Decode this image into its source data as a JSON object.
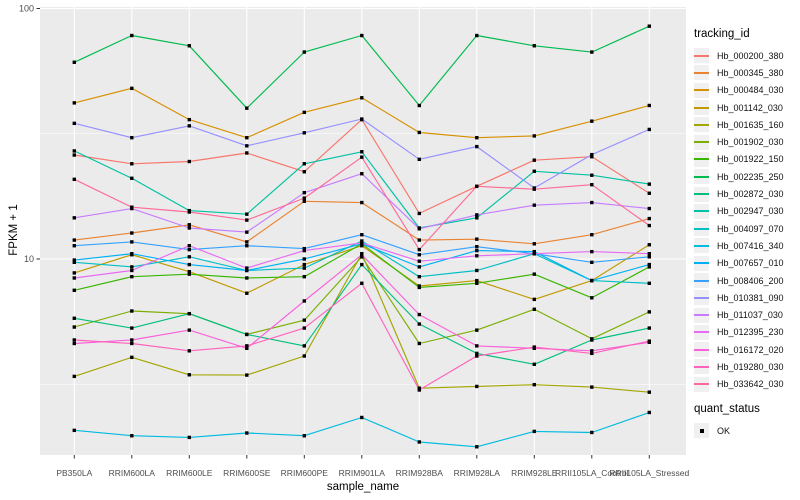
{
  "chart_data": {
    "type": "line",
    "xlabel": "sample_name",
    "ylabel": "FPKM + 1",
    "y_scale": "log10",
    "y_ticks": [
      100,
      10
    ],
    "y_minor_ticks": [
      31.623,
      3.162
    ],
    "y_domain": [
      1.6,
      104
    ],
    "panel_bg": "#EBEBEB",
    "grid_color": "#FFFFFF",
    "point_color": "#000000",
    "legend": {
      "title": "tracking_id",
      "position": "right"
    },
    "quant_status_legend": {
      "title": "quant_status",
      "items": [
        {
          "label": "OK",
          "marker": "black-square"
        }
      ]
    },
    "x_categories": [
      "PB350LA",
      "RRIM600LA",
      "RRIM600LE",
      "RRIM600SE",
      "RRIM600PE",
      "RRIM901LA",
      "RRIM928BA",
      "RRIM928LA",
      "RRIM928LE",
      "RRII105LA_Control",
      "RRII105LA_Stressed"
    ],
    "series": [
      {
        "name": "Hb_000200_380",
        "color": "#F8766D",
        "values": [
          26,
          24,
          24.5,
          26.5,
          22.3,
          36,
          15.2,
          19.5,
          24.8,
          25.6,
          18.3
        ]
      },
      {
        "name": "Hb_000345_380",
        "color": "#EA8331",
        "values": [
          11.9,
          12.7,
          13.7,
          11.7,
          17,
          16.8,
          11.9,
          12,
          11.5,
          12.5,
          14.5
        ]
      },
      {
        "name": "Hb_000484_030",
        "color": "#D89000",
        "values": [
          42,
          48,
          36,
          30.5,
          38.5,
          44,
          32,
          30.5,
          31,
          35.5,
          41
        ]
      },
      {
        "name": "Hb_001142_030",
        "color": "#C09B00",
        "values": [
          8.8,
          10.4,
          8.9,
          7.3,
          9.5,
          11.3,
          7.8,
          8.2,
          6.9,
          8.2,
          11.4
        ]
      },
      {
        "name": "Hb_001635_160",
        "color": "#A3A500",
        "values": [
          3.4,
          4.05,
          3.45,
          3.44,
          4.1,
          10.5,
          3.05,
          3.1,
          3.15,
          3.08,
          2.94
        ]
      },
      {
        "name": "Hb_001902_030",
        "color": "#7CAE00",
        "values": [
          5.35,
          6.2,
          6.05,
          5.0,
          5.7,
          10.2,
          4.6,
          5.2,
          6.3,
          4.8,
          6.15
        ]
      },
      {
        "name": "Hb_001922_150",
        "color": "#39B600",
        "values": [
          7.5,
          8.5,
          8.7,
          8.4,
          8.5,
          11.5,
          7.7,
          8.0,
          8.7,
          7.0,
          9.3
        ]
      },
      {
        "name": "Hb_002235_250",
        "color": "#00BB4E",
        "values": [
          61,
          78,
          71,
          40,
          67,
          78,
          41,
          78,
          71,
          67,
          85
        ]
      },
      {
        "name": "Hb_002872_030",
        "color": "#00BF7D",
        "values": [
          5.8,
          5.3,
          6.05,
          5.0,
          4.5,
          9.5,
          5.5,
          4.2,
          3.8,
          4.75,
          5.3
        ]
      },
      {
        "name": "Hb_002947_030",
        "color": "#00C1A3",
        "values": [
          27,
          21,
          15.6,
          15.1,
          24,
          26.8,
          13.3,
          14.6,
          22.4,
          21.6,
          19.9
        ]
      },
      {
        "name": "Hb_004097_070",
        "color": "#00BFC4",
        "values": [
          9.7,
          9.3,
          10.2,
          9.0,
          9.2,
          11.8,
          8.5,
          9.0,
          10.5,
          8.2,
          8.0
        ]
      },
      {
        "name": "Hb_007416_340",
        "color": "#00BAE0",
        "values": [
          2.07,
          1.97,
          1.94,
          2.02,
          1.97,
          2.33,
          1.86,
          1.78,
          2.05,
          2.03,
          2.44
        ]
      },
      {
        "name": "Hb_007657_010",
        "color": "#00B0F6",
        "values": [
          9.9,
          10.5,
          9.5,
          9.0,
          10.0,
          11.5,
          9.3,
          10.8,
          10.7,
          8.2,
          9.5
        ]
      },
      {
        "name": "Hb_008406_200",
        "color": "#35A2FF",
        "values": [
          11.3,
          11.7,
          10.9,
          11.3,
          11.0,
          12.5,
          10.4,
          11.2,
          10.5,
          9.7,
          10.2
        ]
      },
      {
        "name": "Hb_010381_090",
        "color": "#9590FF",
        "values": [
          34.8,
          30.5,
          34,
          28.3,
          31.9,
          36.2,
          25,
          28.1,
          19.2,
          26.1,
          32.9
        ]
      },
      {
        "name": "Hb_011037_030",
        "color": "#C77CFF",
        "values": [
          14.6,
          15.9,
          13.3,
          12.8,
          18.4,
          21.9,
          13.2,
          15.0,
          16.4,
          16.8,
          15.9
        ]
      },
      {
        "name": "Hb_012395_230",
        "color": "#E76BF3",
        "values": [
          8.4,
          9.0,
          11.3,
          9.2,
          10.8,
          11.6,
          9.8,
          10.3,
          10.5,
          10.7,
          10.5
        ]
      },
      {
        "name": "Hb_016172_020",
        "color": "#FA62DB",
        "values": [
          4.6,
          4.75,
          5.2,
          4.4,
          6.8,
          10.4,
          6.0,
          4.5,
          4.4,
          4.3,
          4.65
        ]
      },
      {
        "name": "Hb_019280_030",
        "color": "#FF62BC",
        "values": [
          4.75,
          4.6,
          4.3,
          4.5,
          5.3,
          8.0,
          3.0,
          4.1,
          4.45,
          4.2,
          4.7
        ]
      },
      {
        "name": "Hb_033642_030",
        "color": "#FF6A98",
        "values": [
          20.8,
          16.1,
          15.4,
          14.3,
          17.5,
          25.5,
          10.9,
          19.5,
          19.0,
          19.8,
          13.6
        ]
      }
    ]
  }
}
